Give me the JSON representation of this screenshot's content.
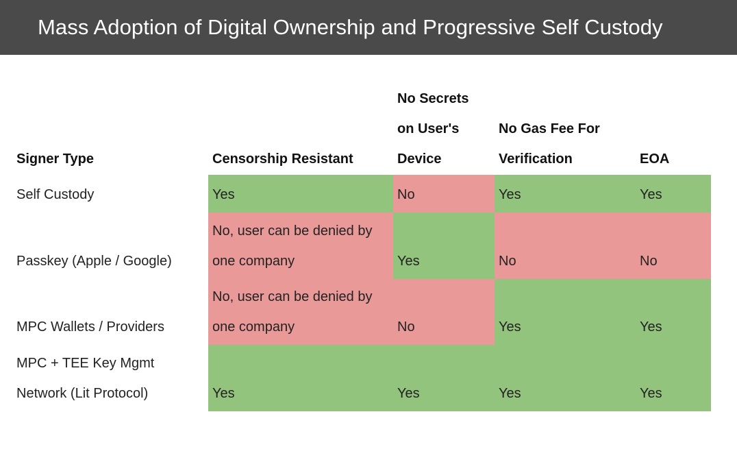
{
  "title": "Mass Adoption of Digital Ownership and Progressive Self Custody",
  "colors": {
    "title_bg": "#4a4a4a",
    "yes_green": "#93c47d",
    "no_red": "#ea9999"
  },
  "table": {
    "headers": [
      {
        "lines": [
          "Signer Type"
        ]
      },
      {
        "lines": [
          "Censorship Resistant"
        ]
      },
      {
        "lines": [
          "No Secrets",
          "on User's",
          "Device"
        ]
      },
      {
        "lines": [
          "No Gas Fee For",
          "Verification"
        ]
      },
      {
        "lines": [
          "EOA"
        ]
      }
    ],
    "rows": [
      {
        "label": [
          "Self Custody"
        ],
        "cells": [
          {
            "lines": [
              "Yes"
            ],
            "status": "yes"
          },
          {
            "lines": [
              "No"
            ],
            "status": "no"
          },
          {
            "lines": [
              "Yes"
            ],
            "status": "yes"
          },
          {
            "lines": [
              "Yes"
            ],
            "status": "yes"
          }
        ]
      },
      {
        "label": [
          "Passkey (Apple / Google)"
        ],
        "cells": [
          {
            "lines": [
              "No, user can be denied by",
              "one company"
            ],
            "status": "no"
          },
          {
            "lines": [
              "Yes"
            ],
            "status": "yes"
          },
          {
            "lines": [
              "No"
            ],
            "status": "no"
          },
          {
            "lines": [
              "No"
            ],
            "status": "no"
          }
        ]
      },
      {
        "label": [
          "MPC Wallets / Providers"
        ],
        "cells": [
          {
            "lines": [
              "No, user can be denied by",
              "one company"
            ],
            "status": "no"
          },
          {
            "lines": [
              "No"
            ],
            "status": "no"
          },
          {
            "lines": [
              "Yes"
            ],
            "status": "yes"
          },
          {
            "lines": [
              "Yes"
            ],
            "status": "yes"
          }
        ]
      },
      {
        "label": [
          "MPC + TEE Key Mgmt",
          "Network (Lit Protocol)"
        ],
        "cells": [
          {
            "lines": [
              "Yes"
            ],
            "status": "yes"
          },
          {
            "lines": [
              "Yes"
            ],
            "status": "yes"
          },
          {
            "lines": [
              "Yes"
            ],
            "status": "yes"
          },
          {
            "lines": [
              "Yes"
            ],
            "status": "yes"
          }
        ]
      }
    ]
  }
}
